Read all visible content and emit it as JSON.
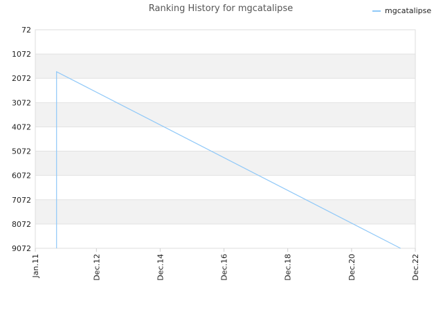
{
  "chart_data": {
    "type": "line",
    "title": "Ranking History for mgcatalipse",
    "xlabel": "",
    "ylabel": "",
    "y_inverted": true,
    "ylim": [
      72,
      9072
    ],
    "y_ticks": [
      "72",
      "1072",
      "2072",
      "3072",
      "4072",
      "5072",
      "6072",
      "7072",
      "8072",
      "9072"
    ],
    "xlim": [
      "2011-01-01",
      "2022-12-01"
    ],
    "x_ticks": [
      "Jan.11",
      "Dec.12",
      "Dec.14",
      "Dec.16",
      "Dec.18",
      "Dec.20",
      "Dec.22"
    ],
    "x_tick_dates": [
      "2011-01-01",
      "2012-12-01",
      "2014-12-01",
      "2016-12-01",
      "2018-12-01",
      "2020-12-01",
      "2022-12-01"
    ],
    "grid": true,
    "legend_position": "top-right",
    "series": [
      {
        "name": "mgcatalipse",
        "color": "#8fc8f8",
        "points": [
          {
            "x": "2011-09-01",
            "y": 9072
          },
          {
            "x": "2011-09-01",
            "y": 1800
          },
          {
            "x": "2022-06-15",
            "y": 9072
          }
        ]
      }
    ]
  }
}
